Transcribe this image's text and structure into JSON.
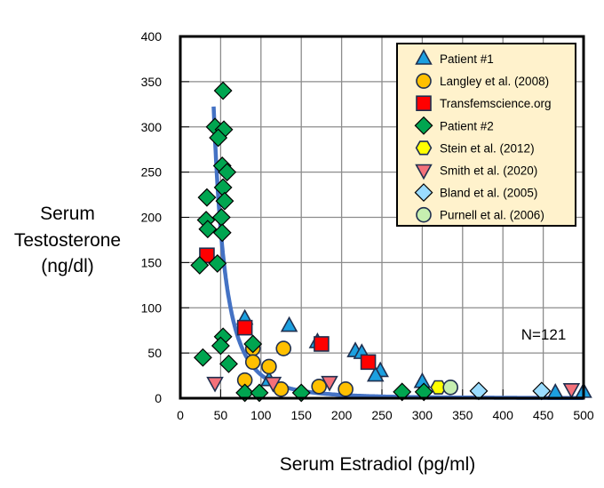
{
  "chart_data": {
    "type": "scatter",
    "title": "",
    "xlabel": "Serum Estradiol (pg/ml)",
    "ylabel_lines": [
      "Serum",
      "Testosterone",
      "(ng/dl)"
    ],
    "xlim": [
      0,
      500
    ],
    "ylim": [
      0,
      400
    ],
    "x_ticks": [
      "0",
      "50",
      "100",
      "150",
      "200",
      "250",
      "300",
      "350",
      "400",
      "450",
      "500"
    ],
    "y_ticks": [
      "0",
      "50",
      "100",
      "150",
      "200",
      "250",
      "300",
      "350",
      "400"
    ],
    "grid": true,
    "legend_position": "top-right",
    "annotation": "N=121",
    "trend_line": {
      "type": "power",
      "color": "#4472C4"
    },
    "series": [
      {
        "name": "Patient #1",
        "marker": "triangle",
        "fill": "#1CA0E0",
        "points": [
          [
            80,
            88
          ],
          [
            135,
            80
          ],
          [
            170,
            62
          ],
          [
            217,
            52
          ],
          [
            225,
            50
          ],
          [
            248,
            30
          ],
          [
            242,
            25
          ],
          [
            110,
            20
          ],
          [
            300,
            18
          ],
          [
            465,
            6
          ],
          [
            500,
            7
          ]
        ]
      },
      {
        "name": "Langley et al. (2008)",
        "marker": "circle",
        "fill": "#FFC000",
        "points": [
          [
            90,
            55
          ],
          [
            128,
            55
          ],
          [
            90,
            40
          ],
          [
            110,
            35
          ],
          [
            80,
            20
          ],
          [
            125,
            10
          ],
          [
            172,
            13
          ],
          [
            205,
            10
          ]
        ]
      },
      {
        "name": "Transfemscience.org",
        "marker": "square",
        "fill": "#FF0000",
        "points": [
          [
            33,
            158
          ],
          [
            80,
            78
          ],
          [
            175,
            60
          ],
          [
            233,
            40
          ]
        ]
      },
      {
        "name": "Patient #2",
        "marker": "diamond",
        "fill": "#00A550",
        "points": [
          [
            53,
            340
          ],
          [
            43,
            300
          ],
          [
            54,
            297
          ],
          [
            47,
            288
          ],
          [
            52,
            257
          ],
          [
            58,
            250
          ],
          [
            53,
            233
          ],
          [
            55,
            218
          ],
          [
            33,
            222
          ],
          [
            32,
            197
          ],
          [
            51,
            200
          ],
          [
            34,
            187
          ],
          [
            52,
            183
          ],
          [
            24,
            147
          ],
          [
            46,
            149
          ],
          [
            53,
            68
          ],
          [
            50,
            58
          ],
          [
            28,
            45
          ],
          [
            60,
            38
          ],
          [
            90,
            60
          ],
          [
            80,
            6
          ],
          [
            98,
            6
          ],
          [
            150,
            6
          ],
          [
            275,
            7
          ],
          [
            302,
            7
          ]
        ]
      },
      {
        "name": "Stein et al. (2012)",
        "marker": "hexagon",
        "fill": "#FFFF00",
        "points": [
          [
            320,
            12
          ]
        ]
      },
      {
        "name": "Smith et al. (2020)",
        "marker": "triangle-down",
        "fill": "#F4717A",
        "points": [
          [
            43,
            17
          ],
          [
            115,
            17
          ],
          [
            185,
            18
          ],
          [
            485,
            10
          ]
        ]
      },
      {
        "name": "Bland et al. (2005)",
        "marker": "diamond",
        "fill": "#9ADCFF",
        "points": [
          [
            370,
            8
          ],
          [
            448,
            8
          ]
        ]
      },
      {
        "name": "Purnell et al. (2006)",
        "marker": "circle",
        "fill": "#C6EFB0",
        "points": [
          [
            335,
            12
          ]
        ]
      }
    ]
  }
}
